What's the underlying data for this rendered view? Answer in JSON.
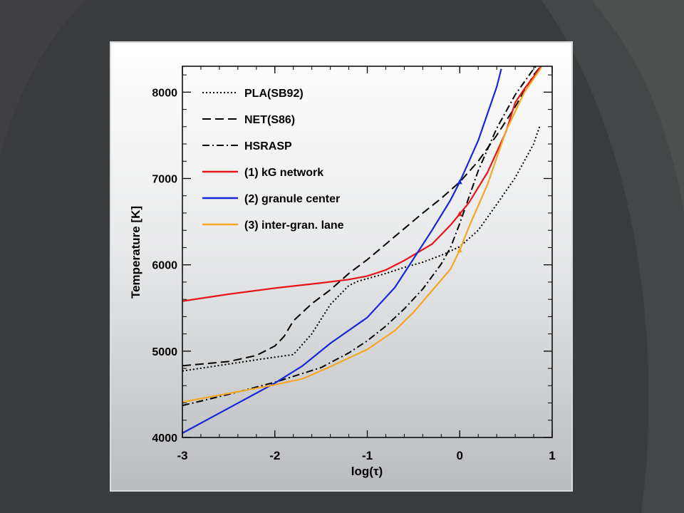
{
  "chart_data": {
    "type": "line",
    "xlabel": "log(τ)",
    "ylabel": "Temperature [K]",
    "xlim": [
      -3,
      1
    ],
    "ylim": [
      4000,
      8300
    ],
    "x_ticks": [
      "-3",
      "-2",
      "-1",
      "0",
      "1"
    ],
    "y_ticks": [
      "4000",
      "5000",
      "6000",
      "7000",
      "8000"
    ],
    "legend_position": "top-left",
    "series": [
      {
        "name": "PLA(SB92)",
        "color": "#000000",
        "style": "dotted",
        "x": [
          -3,
          -2.5,
          -2.2,
          -2,
          -1.8,
          -1.6,
          -1.4,
          -1.2,
          -1.1,
          -1,
          -0.8,
          -0.6,
          -0.4,
          -0.2,
          0,
          0.2,
          0.4,
          0.6,
          0.8,
          0.87
        ],
        "y": [
          4770,
          4850,
          4900,
          4930,
          4960,
          5200,
          5540,
          5760,
          5810,
          5840,
          5900,
          5970,
          6030,
          6110,
          6210,
          6400,
          6700,
          7010,
          7400,
          7620
        ]
      },
      {
        "name": "NET(S86)",
        "color": "#000000",
        "style": "dashed",
        "x": [
          -3,
          -2.5,
          -2.2,
          -2,
          -1.9,
          -1.8,
          -1.6,
          -1.4,
          -1.2,
          -1,
          -0.8,
          -0.6,
          -0.4,
          -0.2,
          0,
          0.2,
          0.4,
          0.6,
          0.8,
          0.9
        ],
        "y": [
          4830,
          4880,
          4950,
          5060,
          5170,
          5350,
          5550,
          5710,
          5900,
          6060,
          6240,
          6420,
          6600,
          6770,
          6960,
          7200,
          7500,
          7830,
          8200,
          8330
        ]
      },
      {
        "name": "HSRASP",
        "color": "#000000",
        "style": "dashdot",
        "x": [
          -3,
          -2.5,
          -2,
          -1.5,
          -1.2,
          -1,
          -0.8,
          -0.6,
          -0.4,
          -0.2,
          -0.1,
          0,
          0.2,
          0.4,
          0.6,
          0.8,
          0.85
        ],
        "y": [
          4370,
          4500,
          4640,
          4810,
          4980,
          5120,
          5290,
          5490,
          5720,
          6010,
          6200,
          6480,
          7090,
          7580,
          7970,
          8270,
          8330
        ]
      },
      {
        "name": "(1) kG network",
        "color": "#e8141c",
        "style": "solid",
        "x": [
          -3,
          -2.5,
          -2,
          -1.5,
          -1.2,
          -1,
          -0.8,
          -0.6,
          -0.3,
          -0.1,
          0,
          0.1,
          0.3,
          0.5,
          0.6,
          0.7,
          0.8,
          0.88
        ],
        "y": [
          5580,
          5660,
          5730,
          5790,
          5830,
          5870,
          5940,
          6050,
          6240,
          6460,
          6590,
          6720,
          7070,
          7540,
          7880,
          8040,
          8180,
          8300
        ]
      },
      {
        "name": "(2) granule center",
        "color": "#1428d8",
        "style": "solid",
        "x": [
          -3,
          -2.5,
          -2,
          -1.7,
          -1.4,
          -1,
          -0.7,
          -0.5,
          -0.3,
          -0.1,
          0,
          0.2,
          0.4,
          0.45
        ],
        "y": [
          4050,
          4340,
          4630,
          4830,
          5090,
          5390,
          5740,
          6070,
          6400,
          6750,
          6960,
          7440,
          8060,
          8270
        ]
      },
      {
        "name": "(3) inter-gran. lane",
        "color": "#f5a623",
        "style": "solid",
        "x": [
          -3,
          -2.5,
          -2,
          -1.7,
          -1.4,
          -1,
          -0.7,
          -0.5,
          -0.3,
          -0.1,
          0,
          0.1,
          0.3,
          0.5,
          0.7,
          0.88
        ],
        "y": [
          4410,
          4510,
          4610,
          4680,
          4820,
          5020,
          5240,
          5450,
          5700,
          5950,
          6170,
          6440,
          6930,
          7550,
          8000,
          8280
        ]
      }
    ],
    "markers": [
      {
        "series": "(1) kG network",
        "x": 0,
        "y": 6590,
        "color": "#e8141c"
      },
      {
        "series": "(2) granule center",
        "x": 0,
        "y": 6960,
        "color": "#1428d8"
      },
      {
        "series": "(3) inter-gran. lane",
        "x": 0,
        "y": 6170,
        "color": "#f5a623"
      }
    ]
  }
}
